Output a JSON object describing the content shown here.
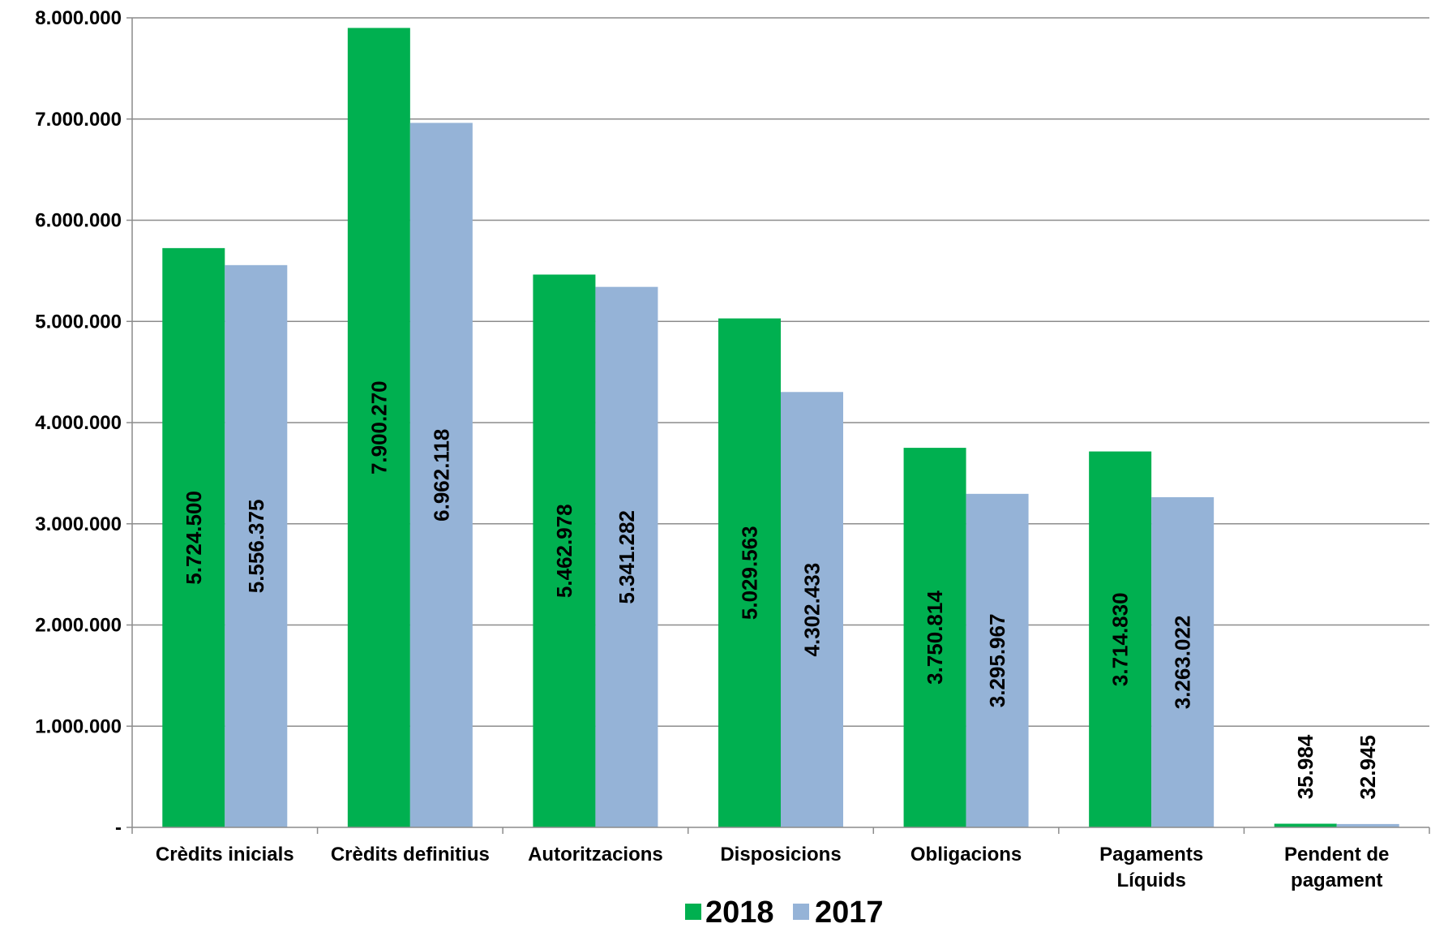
{
  "chart_data": {
    "type": "bar",
    "categories": [
      "Crèdits inicials",
      "Crèdits definitius",
      "Autoritzacions",
      "Disposicions",
      "Obligacions",
      "Pagaments\nLíquids",
      "Pendent de\npagament"
    ],
    "series": [
      {
        "name": "2018",
        "color": "#00b050",
        "values": [
          5724500,
          7900270,
          5462978,
          5029563,
          3750814,
          3714830,
          35984
        ],
        "labels": [
          "5.724.500",
          "7.900.270",
          "5.462.978",
          "5.029.563",
          "3.750.814",
          "3.714.830",
          "35.984"
        ]
      },
      {
        "name": "2017",
        "color": "#95b3d7",
        "values": [
          5556375,
          6962118,
          5341282,
          4302433,
          3295967,
          3263022,
          32945
        ],
        "labels": [
          "5.556.375",
          "6.962.118",
          "5.341.282",
          "4.302.433",
          "3.295.967",
          "3.263.022",
          "32.945"
        ]
      }
    ],
    "ylim": [
      0,
      8000000
    ],
    "yticks": [
      0,
      1000000,
      2000000,
      3000000,
      4000000,
      5000000,
      6000000,
      7000000,
      8000000
    ],
    "ytick_labels": [
      "-",
      "1.000.000",
      "2.000.000",
      "3.000.000",
      "4.000.000",
      "5.000.000",
      "6.000.000",
      "7.000.000",
      "8.000.000"
    ],
    "grid": true,
    "legend": "bottom"
  }
}
